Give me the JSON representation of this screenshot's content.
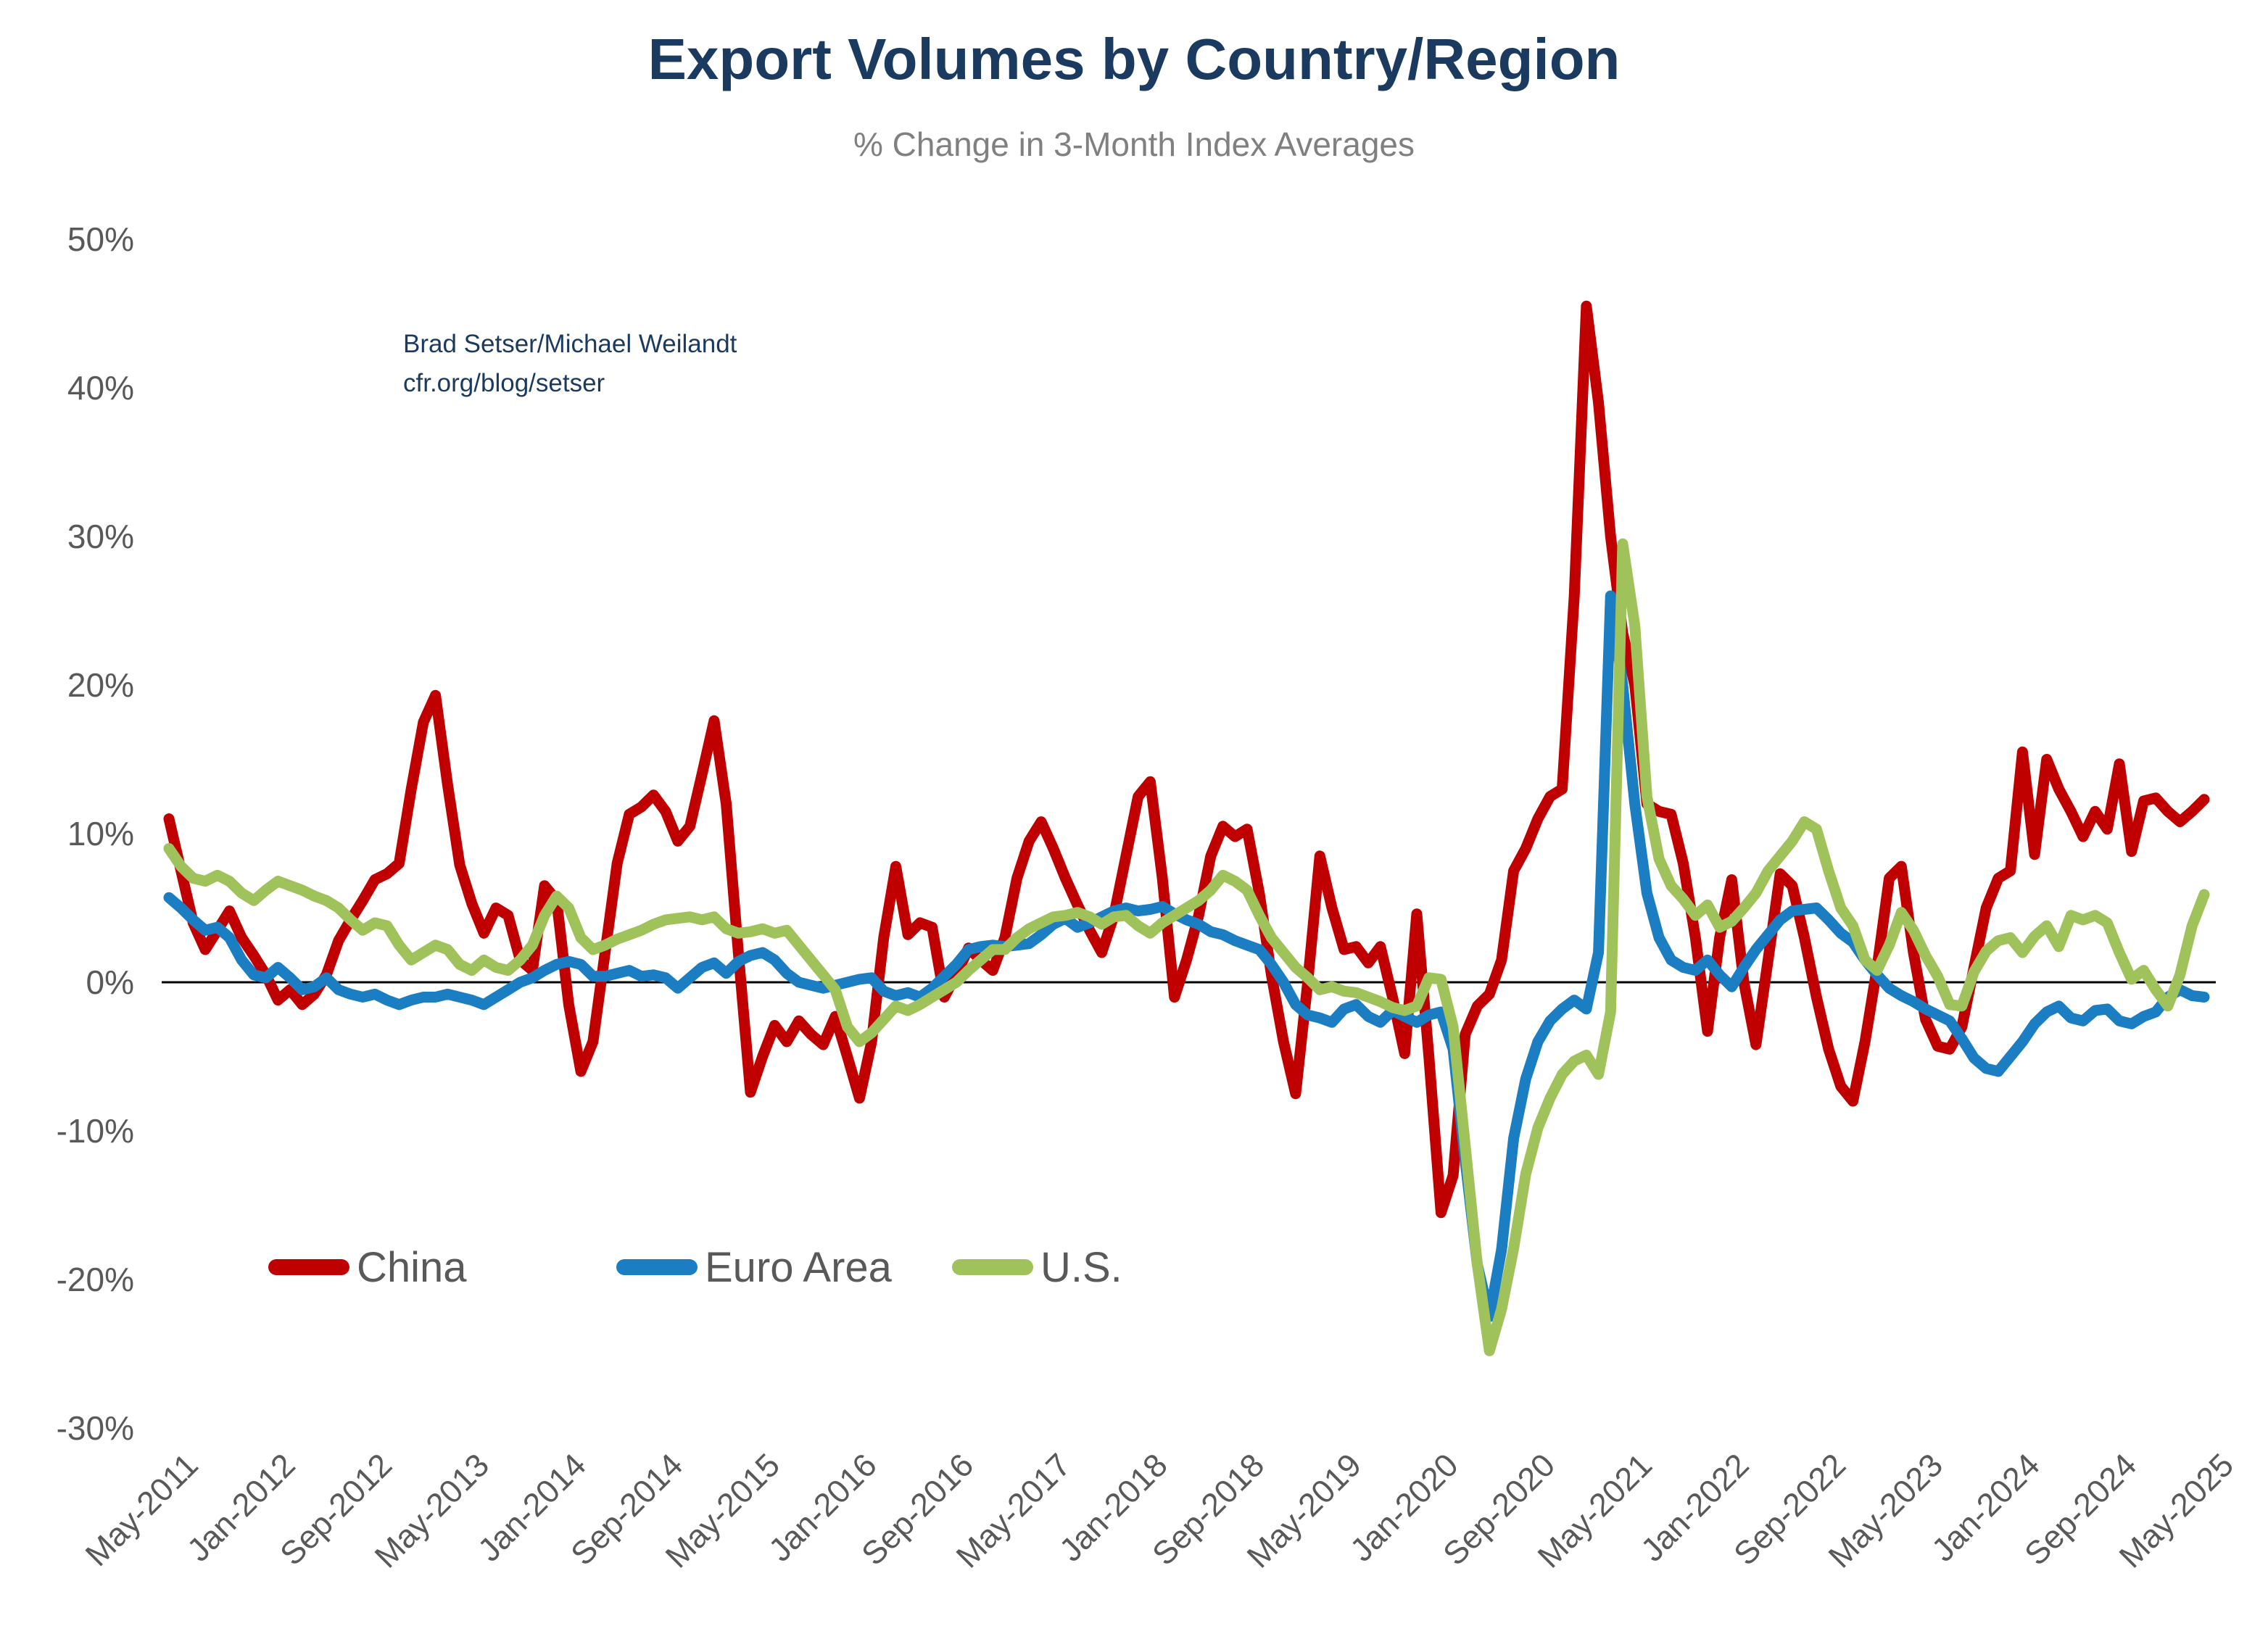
{
  "chart": {
    "title": "Export Volumes by Country/Region",
    "subtitle": "% Change in 3-Month Index Averages",
    "annotation": {
      "line1": "Brad Setser/Michael Weilandt",
      "line2": "cfr.org/blog/setser"
    }
  },
  "colors": {
    "title_navy": "#1b3a5f",
    "subtitle_gray": "#808080",
    "axis_label_gray": "#595959",
    "zero_line_black": "#000000",
    "china_red": "#c00000",
    "euro_area_blue": "#1b7ec2",
    "us_green": "#9fc25b"
  },
  "chart_data": {
    "type": "line",
    "title": "Export Volumes by Country/Region",
    "subtitle": "% Change in 3-Month Index Averages",
    "x_start": "May-2011",
    "x_end": "May-2025",
    "x_frequency": "monthly",
    "x_tick_interval_months": 8,
    "x_tick_labels": [
      "May-2011",
      "Jan-2012",
      "Sep-2012",
      "May-2013",
      "Jan-2014",
      "Sep-2014",
      "May-2015",
      "Jan-2016",
      "Sep-2016",
      "May-2017",
      "Jan-2018",
      "Sep-2018",
      "May-2019",
      "Jan-2020",
      "Sep-2020",
      "May-2021",
      "Jan-2022",
      "Sep-2022",
      "May-2023",
      "Jan-2024",
      "Sep-2024",
      "May-2025"
    ],
    "ylim": [
      -30,
      50
    ],
    "y_tick_values": [
      50,
      40,
      30,
      20,
      10,
      0,
      -10,
      -20,
      -30
    ],
    "y_tick_labels": [
      "50%",
      "40%",
      "30%",
      "20%",
      "10%",
      "0%",
      "-10%",
      "-20%",
      "-30%"
    ],
    "grid": "off",
    "zero_line": true,
    "legend_position": "inside-lower-left",
    "series": [
      {
        "name": "China",
        "color": "#c00000",
        "values": [
          11.0,
          7.5,
          4.0,
          2.2,
          3.5,
          4.8,
          3.0,
          1.8,
          0.5,
          -1.2,
          -0.5,
          -1.5,
          -0.8,
          0.5,
          2.8,
          4.2,
          5.5,
          6.9,
          7.3,
          8.0,
          13.0,
          17.5,
          19.3,
          13.3,
          7.9,
          5.3,
          3.3,
          5.0,
          4.5,
          1.5,
          0.8,
          6.5,
          5.5,
          -1.5,
          -6.0,
          -4.0,
          2.0,
          8.0,
          11.3,
          11.8,
          12.6,
          11.5,
          9.5,
          10.5,
          14.0,
          17.6,
          12.0,
          2.0,
          -7.4,
          -5.0,
          -2.9,
          -4.0,
          -2.6,
          -3.5,
          -4.2,
          -2.3,
          -5.0,
          -7.8,
          -4.0,
          3.0,
          7.8,
          3.2,
          4.0,
          3.7,
          -1.0,
          0.5,
          2.3,
          1.5,
          0.8,
          3.0,
          7.0,
          9.5,
          10.8,
          9.0,
          7.0,
          5.2,
          3.5,
          2.0,
          4.5,
          8.5,
          12.5,
          13.5,
          7.0,
          -1.0,
          1.5,
          4.5,
          8.5,
          10.5,
          9.8,
          10.3,
          6.0,
          0.5,
          -4.0,
          -7.5,
          0.0,
          8.5,
          5.0,
          2.2,
          2.4,
          1.3,
          2.4,
          -1.0,
          -4.8,
          4.6,
          -5.0,
          -15.5,
          -13.0,
          -3.5,
          -1.6,
          -0.8,
          1.5,
          7.5,
          9.0,
          11.0,
          12.5,
          13.0,
          26.0,
          45.5,
          39.0,
          30.0,
          23.5,
          20.0,
          12.0,
          11.5,
          11.3,
          8.0,
          3.0,
          -3.3,
          3.0,
          6.9,
          0.0,
          -4.2,
          1.5,
          7.3,
          6.5,
          3.0,
          -1.0,
          -4.5,
          -7.0,
          -8.0,
          -4.0,
          1.0,
          7.0,
          7.8,
          2.0,
          -2.5,
          -4.3,
          -4.5,
          -3.0,
          1.0,
          5.0,
          7.0,
          7.5,
          15.5,
          8.6,
          15.0,
          13.0,
          11.5,
          9.8,
          11.5,
          10.3,
          14.7,
          8.8,
          12.2,
          12.4,
          11.5,
          10.8,
          11.5,
          12.3
        ]
      },
      {
        "name": "Euro Area",
        "color": "#1b7ec2",
        "values": [
          5.7,
          5.0,
          4.2,
          3.5,
          3.7,
          3.0,
          1.5,
          0.5,
          0.3,
          1.0,
          0.3,
          -0.5,
          -0.3,
          0.3,
          -0.5,
          -0.8,
          -1.0,
          -0.8,
          -1.2,
          -1.5,
          -1.2,
          -1.0,
          -1.0,
          -0.8,
          -1.0,
          -1.2,
          -1.5,
          -1.0,
          -0.5,
          0.0,
          0.3,
          0.8,
          1.2,
          1.4,
          1.2,
          0.4,
          0.4,
          0.6,
          0.8,
          0.4,
          0.5,
          0.3,
          -0.4,
          0.3,
          1.0,
          1.3,
          0.6,
          1.4,
          1.8,
          2.0,
          1.5,
          0.6,
          0.0,
          -0.2,
          -0.4,
          -0.2,
          0.0,
          0.2,
          0.3,
          -0.6,
          -0.9,
          -0.7,
          -1.0,
          -0.4,
          0.4,
          1.2,
          2.2,
          2.4,
          2.5,
          2.4,
          2.5,
          2.6,
          3.2,
          3.9,
          4.3,
          3.7,
          4.0,
          4.4,
          4.8,
          5.0,
          4.8,
          4.9,
          5.1,
          4.6,
          4.2,
          3.9,
          3.4,
          3.2,
          2.8,
          2.5,
          2.2,
          1.2,
          0.0,
          -1.5,
          -2.2,
          -2.4,
          -2.7,
          -1.8,
          -1.5,
          -2.3,
          -2.7,
          -1.9,
          -2.3,
          -2.7,
          -2.2,
          -2.0,
          -4.5,
          -12.0,
          -19.0,
          -22.5,
          -18.0,
          -10.5,
          -6.5,
          -4.0,
          -2.6,
          -1.8,
          -1.2,
          -1.8,
          2.0,
          26.0,
          20.0,
          12.0,
          6.0,
          3.0,
          1.5,
          1.0,
          0.8,
          1.5,
          0.5,
          -0.3,
          1.0,
          2.2,
          3.2,
          4.2,
          4.8,
          4.9,
          5.0,
          4.2,
          3.3,
          2.7,
          1.5,
          0.5,
          -0.4,
          -0.9,
          -1.3,
          -1.8,
          -2.2,
          -2.6,
          -3.8,
          -5.1,
          -5.8,
          -6.0,
          -5.0,
          -4.0,
          -2.8,
          -2.0,
          -1.6,
          -2.4,
          -2.6,
          -1.9,
          -1.8,
          -2.6,
          -2.8,
          -2.3,
          -2.0,
          -1.0,
          -0.5,
          -0.9,
          -1.0
        ]
      },
      {
        "name": "U.S.",
        "color": "#9fc25b",
        "values": [
          9.0,
          7.8,
          7.0,
          6.8,
          7.2,
          6.8,
          6.0,
          5.5,
          6.2,
          6.8,
          6.5,
          6.2,
          5.8,
          5.5,
          5.0,
          4.2,
          3.5,
          4.0,
          3.8,
          2.5,
          1.5,
          2.0,
          2.5,
          2.2,
          1.2,
          0.8,
          1.5,
          1.0,
          0.8,
          1.5,
          2.5,
          4.5,
          5.8,
          5.0,
          3.0,
          2.2,
          2.5,
          2.9,
          3.2,
          3.5,
          3.9,
          4.2,
          4.3,
          4.4,
          4.2,
          4.4,
          3.6,
          3.3,
          3.4,
          3.6,
          3.3,
          3.5,
          2.5,
          1.5,
          0.5,
          -0.5,
          -3.0,
          -4.0,
          -3.4,
          -2.5,
          -1.6,
          -1.9,
          -1.5,
          -1.0,
          -0.5,
          0.0,
          0.8,
          1.5,
          2.2,
          2.2,
          3.0,
          3.6,
          4.0,
          4.4,
          4.5,
          4.7,
          4.4,
          3.9,
          4.4,
          4.5,
          3.8,
          3.3,
          4.0,
          4.5,
          5.0,
          5.5,
          6.2,
          7.2,
          6.8,
          6.2,
          4.5,
          3.0,
          2.0,
          1.0,
          0.3,
          -0.5,
          -0.3,
          -0.6,
          -0.7,
          -1.0,
          -1.3,
          -1.7,
          -1.9,
          -1.6,
          0.3,
          0.2,
          -3.0,
          -11.0,
          -19.0,
          -24.8,
          -22.0,
          -17.9,
          -12.9,
          -9.8,
          -7.8,
          -6.2,
          -5.3,
          -4.9,
          -6.2,
          -2.0,
          29.5,
          24.0,
          12.5,
          8.3,
          6.5,
          5.6,
          4.5,
          5.2,
          3.7,
          4.1,
          5.0,
          6.0,
          7.5,
          8.5,
          9.5,
          10.8,
          10.3,
          7.5,
          5.0,
          3.8,
          1.5,
          0.8,
          2.5,
          4.7,
          3.5,
          1.8,
          0.4,
          -1.5,
          -1.6,
          0.7,
          2.1,
          2.8,
          3.0,
          2.0,
          3.1,
          3.8,
          2.4,
          4.5,
          4.2,
          4.5,
          4.0,
          2.0,
          0.2,
          0.8,
          -0.5,
          -1.6,
          0.5,
          3.8,
          5.9
        ]
      }
    ]
  }
}
